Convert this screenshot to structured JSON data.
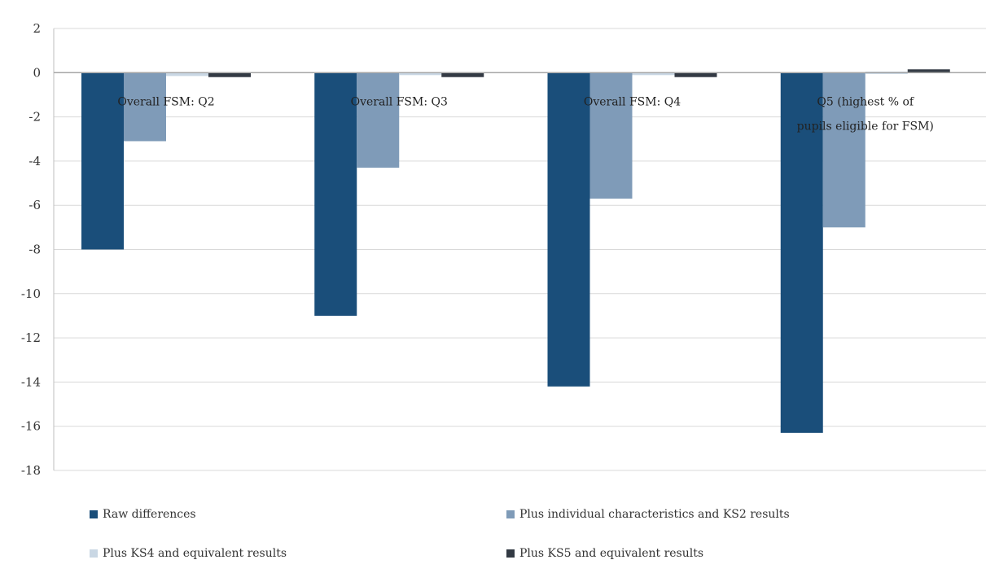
{
  "chart_data": {
    "type": "bar",
    "categories": [
      "Overall FSM: Q2",
      "Overall FSM: Q3",
      "Overall FSM: Q4",
      "Q5 (highest % of pupils eligible for FSM)"
    ],
    "series": [
      {
        "name": "Raw differences",
        "color": "#1a4e7a",
        "values": [
          -8.0,
          -11.0,
          -14.2,
          -16.3
        ]
      },
      {
        "name": "Plus individual characteristics and KS2 results",
        "color": "#7f9bb8",
        "values": [
          -3.1,
          -4.3,
          -5.7,
          -7.0
        ]
      },
      {
        "name": "Plus KS4 and equivalent results",
        "color": "#c9d7e4",
        "values": [
          -0.15,
          -0.1,
          -0.05,
          0.05
        ]
      },
      {
        "name": "Plus KS5 and equivalent results",
        "color": "#333a44",
        "values": [
          -0.2,
          -0.2,
          -0.2,
          0.15
        ]
      }
    ],
    "ylim": [
      -18,
      2
    ],
    "yticks": [
      2,
      0,
      -2,
      -4,
      -6,
      -8,
      -10,
      -12,
      -14,
      -16,
      -18
    ],
    "grid": true,
    "legend_position": "bottom",
    "xlabel": "",
    "ylabel": ""
  }
}
